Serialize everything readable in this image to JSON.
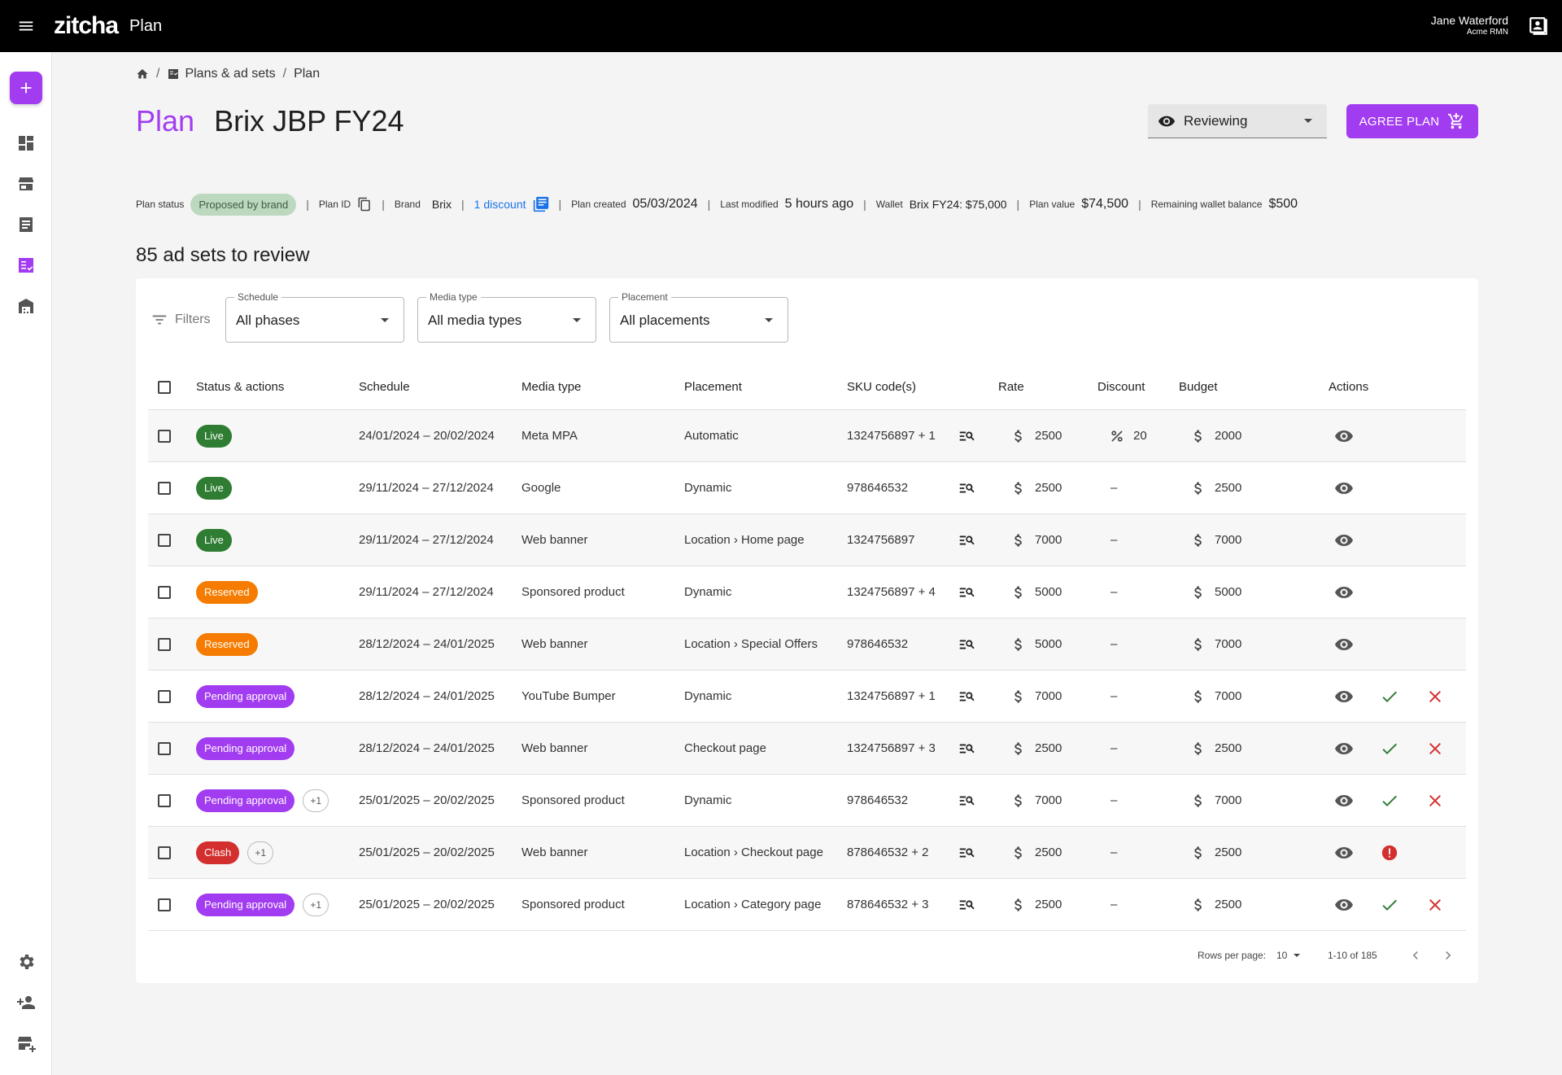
{
  "app": {
    "logo": "zitcha",
    "name": "Plan"
  },
  "user": {
    "name": "Jane Waterford",
    "org": "Acme RMN"
  },
  "breadcrumb": {
    "section": "Plans & ad sets",
    "current": "Plan"
  },
  "title": {
    "prefix": "Plan",
    "name": "Brix JBP FY24"
  },
  "header_actions": {
    "status_value": "Reviewing",
    "agree_label": "AGREE PLAN"
  },
  "meta": {
    "plan_status_label": "Plan status",
    "plan_status": "Proposed by brand",
    "plan_id_label": "Plan ID",
    "brand_label": "Brand",
    "brand": "Brix",
    "discount_link": "1 discount",
    "created_label": "Plan created",
    "created": "05/03/2024",
    "modified_label": "Last modified",
    "modified": "5 hours ago",
    "wallet_label": "Wallet",
    "wallet": "Brix FY24: $75,000",
    "value_label": "Plan value",
    "value": "$74,500",
    "remaining_label": "Remaining wallet balance",
    "remaining": "$500"
  },
  "count_heading": "85 ad sets to review",
  "filters": {
    "label": "Filters",
    "schedule": {
      "label": "Schedule",
      "value": "All phases"
    },
    "media_type": {
      "label": "Media type",
      "value": "All media types"
    },
    "placement": {
      "label": "Placement",
      "value": "All placements"
    }
  },
  "columns": {
    "status": "Status & actions",
    "schedule": "Schedule",
    "media": "Media type",
    "placement": "Placement",
    "sku": "SKU code(s)",
    "rate": "Rate",
    "discount": "Discount",
    "budget": "Budget",
    "actions": "Actions"
  },
  "rows": [
    {
      "status": "Live",
      "status_kind": "live",
      "extra": "",
      "schedule": "24/01/2024 – 20/02/2024",
      "media": "Meta MPA",
      "placement": "Automatic",
      "sku": "1324756897 + 1",
      "rate": "2500",
      "discount": "20",
      "budget": "2000",
      "actions": [
        "view"
      ]
    },
    {
      "status": "Live",
      "status_kind": "live",
      "extra": "",
      "schedule": "29/11/2024 – 27/12/2024",
      "media": "Google",
      "placement": "Dynamic",
      "sku": "978646532",
      "rate": "2500",
      "discount": "–",
      "budget": "2500",
      "actions": [
        "view"
      ]
    },
    {
      "status": "Live",
      "status_kind": "live",
      "extra": "",
      "schedule": "29/11/2024 – 27/12/2024",
      "media": "Web banner",
      "placement": "Location › Home page",
      "sku": "1324756897",
      "rate": "7000",
      "discount": "–",
      "budget": "7000",
      "actions": [
        "view"
      ]
    },
    {
      "status": "Reserved",
      "status_kind": "reserved",
      "extra": "",
      "schedule": "29/11/2024 – 27/12/2024",
      "media": "Sponsored product",
      "placement": "Dynamic",
      "sku": "1324756897 + 4",
      "rate": "5000",
      "discount": "–",
      "budget": "5000",
      "actions": [
        "view"
      ]
    },
    {
      "status": "Reserved",
      "status_kind": "reserved",
      "extra": "",
      "schedule": "28/12/2024 – 24/01/2025",
      "media": "Web banner",
      "placement": "Location › Special Offers",
      "sku": "978646532",
      "rate": "5000",
      "discount": "–",
      "budget": "7000",
      "actions": [
        "view"
      ]
    },
    {
      "status": "Pending approval",
      "status_kind": "pending",
      "extra": "",
      "schedule": "28/12/2024 – 24/01/2025",
      "media": "YouTube Bumper",
      "placement": "Dynamic",
      "sku": "1324756897 + 1",
      "rate": "7000",
      "discount": "–",
      "budget": "7000",
      "actions": [
        "view",
        "approve",
        "reject"
      ]
    },
    {
      "status": "Pending approval",
      "status_kind": "pending",
      "extra": "",
      "schedule": "28/12/2024 – 24/01/2025",
      "media": "Web banner",
      "placement": "Checkout page",
      "sku": "1324756897 + 3",
      "rate": "2500",
      "discount": "–",
      "budget": "2500",
      "actions": [
        "view",
        "approve",
        "reject"
      ]
    },
    {
      "status": "Pending approval",
      "status_kind": "pending",
      "extra": "+1",
      "schedule": "25/01/2025 – 20/02/2025",
      "media": "Sponsored product",
      "placement": "Dynamic",
      "sku": "978646532",
      "rate": "7000",
      "discount": "–",
      "budget": "7000",
      "actions": [
        "view",
        "approve",
        "reject"
      ]
    },
    {
      "status": "Clash",
      "status_kind": "clash",
      "extra": "+1",
      "schedule": "25/01/2025 – 20/02/2025",
      "media": "Web banner",
      "placement": "Location › Checkout page",
      "sku": "878646532 + 2",
      "rate": "2500",
      "discount": "–",
      "budget": "2500",
      "actions": [
        "view",
        "error"
      ]
    },
    {
      "status": "Pending approval",
      "status_kind": "pending",
      "extra": "+1",
      "schedule": "25/01/2025 – 20/02/2025",
      "media": "Sponsored product",
      "placement": "Location › Category page",
      "sku": "878646532 + 3",
      "rate": "2500",
      "discount": "–",
      "budget": "2500",
      "actions": [
        "view",
        "approve",
        "reject"
      ]
    }
  ],
  "pagination": {
    "rows_label": "Rows per page:",
    "rows_value": "10",
    "range": "1-10 of 185"
  },
  "colors": {
    "brand": "#a23cf0",
    "live": "#2e7d32",
    "reserved": "#f57c00",
    "clash": "#d32f2f",
    "approve": "#2e7d32",
    "reject": "#d32f2f"
  },
  "icons": [
    "menu-icon",
    "account-box-icon",
    "plus-icon",
    "dashboard-icon",
    "store-icon",
    "list-icon",
    "plan-icon",
    "warehouse-icon",
    "settings-icon",
    "person-add-icon",
    "store-add-icon",
    "home-icon",
    "eye-icon",
    "cart-add-icon",
    "copy-icon",
    "discount-list-icon",
    "filter-icon",
    "sku-search-icon",
    "dollar-icon",
    "percent-icon",
    "check-icon",
    "close-icon",
    "error-icon",
    "chevron-left-icon",
    "chevron-right-icon"
  ]
}
